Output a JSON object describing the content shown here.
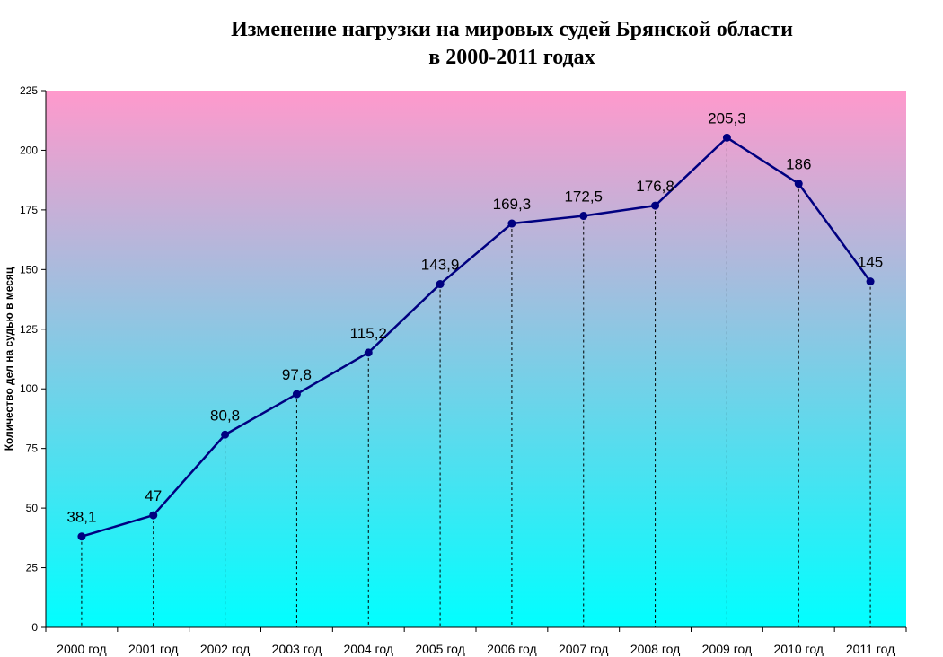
{
  "chart_data": {
    "type": "line",
    "title_line1": "Изменение нагрузки на мировых судей Брянской области",
    "title_line2": "в 2000-2011 годах",
    "ylabel": "Количество дел на судью в месяц",
    "xlabel": "",
    "ylim": [
      0,
      225
    ],
    "yticks": [
      0,
      25,
      50,
      75,
      100,
      125,
      150,
      175,
      200,
      225
    ],
    "categories": [
      "2000 год",
      "2001 год",
      "2002 год",
      "2003 год",
      "2004 год",
      "2005 год",
      "2006 год",
      "2007 год",
      "2008 год",
      "2009 год",
      "2010 год",
      "2011 год"
    ],
    "values": [
      38.1,
      47,
      80.8,
      97.8,
      115.2,
      143.9,
      169.3,
      172.5,
      176.8,
      205.3,
      186,
      145
    ],
    "data_labels": [
      "38,1",
      "47",
      "80,8",
      "97,8",
      "115,2",
      "143,9",
      "169,3",
      "172,5",
      "176,8",
      "205,3",
      "186",
      "145"
    ],
    "line_color": "#000080",
    "background_gradient": [
      "#ff99cc",
      "#00ffff"
    ],
    "grid": false,
    "drop_lines": true
  }
}
